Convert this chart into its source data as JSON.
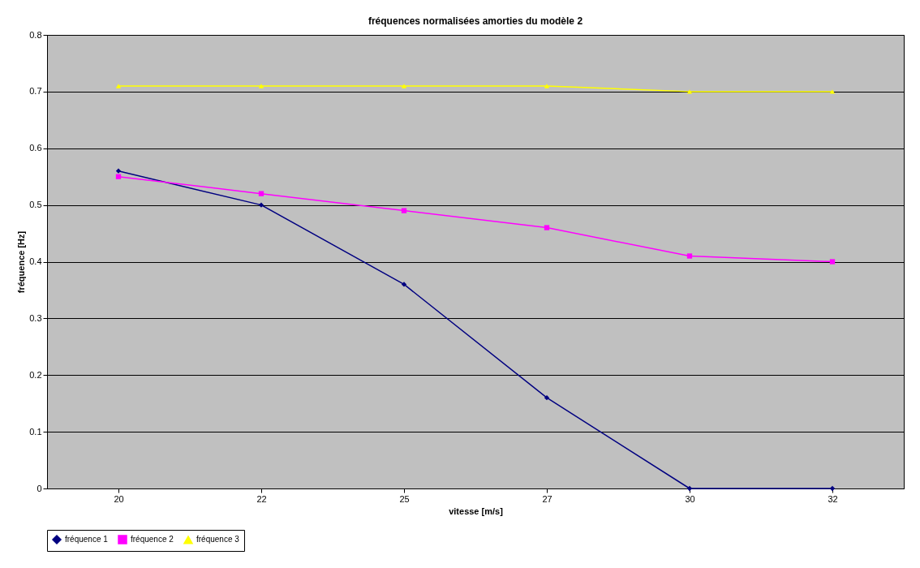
{
  "chart_data": {
    "type": "line",
    "title": "fréquences normalisées amorties du modèle 2",
    "xlabel": "vitesse [m/s]",
    "ylabel": "fréquence [Hz]",
    "categories": [
      "20",
      "22",
      "25",
      "27",
      "30",
      "32"
    ],
    "series": [
      {
        "name": "fréquence 1",
        "color": "#000080",
        "marker": "diamond",
        "values": [
          0.56,
          0.5,
          0.36,
          0.16,
          0,
          0
        ]
      },
      {
        "name": "fréquence 2",
        "color": "#ff00ff",
        "marker": "square",
        "values": [
          0.55,
          0.52,
          0.49,
          0.46,
          0.41,
          0.4
        ]
      },
      {
        "name": "fréquence 3",
        "color": "#ffff00",
        "marker": "triangle",
        "values": [
          0.71,
          0.71,
          0.71,
          0.71,
          0.7,
          0.7
        ]
      }
    ],
    "ylim": [
      0,
      0.8
    ],
    "yticks": [
      0,
      0.1,
      0.2,
      0.3,
      0.4,
      0.5,
      0.6,
      0.7,
      0.8
    ],
    "grid": "y",
    "legend": "bottom",
    "line_style": "solid"
  }
}
